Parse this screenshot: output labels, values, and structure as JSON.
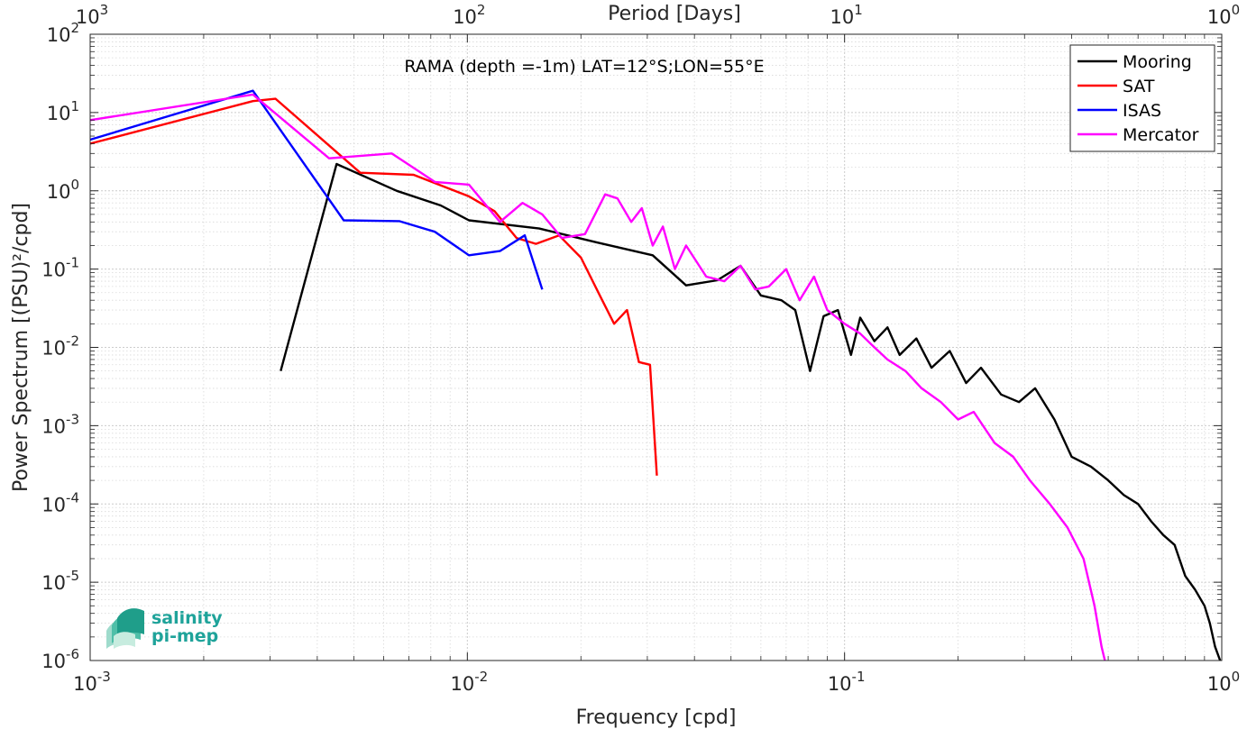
{
  "chart_data": {
    "type": "line",
    "log_x": true,
    "log_y": true,
    "xlim": [
      0.001,
      1
    ],
    "ylim": [
      1e-06,
      100
    ],
    "xlabel": "Frequency [cpd]",
    "ylabel": "Power Spectrum [(PSU)²/cpd]",
    "top_xlabel": "Period [Days]",
    "annotation": "RAMA (depth =-1m) LAT=12°S;LON=55°E",
    "grid": true,
    "legend_position": "top-right",
    "x_ticks": [
      {
        "value": 0.001,
        "base": "10",
        "exp": "-3"
      },
      {
        "value": 0.01,
        "base": "10",
        "exp": "-2"
      },
      {
        "value": 0.1,
        "base": "10",
        "exp": "-1"
      },
      {
        "value": 1,
        "base": "10",
        "exp": "0"
      }
    ],
    "top_ticks": [
      {
        "value": 0.001,
        "base": "10",
        "exp": "3"
      },
      {
        "value": 0.01,
        "base": "10",
        "exp": "2"
      },
      {
        "value": 0.1,
        "base": "10",
        "exp": "1"
      },
      {
        "value": 1,
        "base": "10",
        "exp": "0"
      }
    ],
    "y_ticks": [
      {
        "value": 100,
        "base": "10",
        "exp": "2"
      },
      {
        "value": 10,
        "base": "10",
        "exp": "1"
      },
      {
        "value": 1,
        "base": "10",
        "exp": "0"
      },
      {
        "value": 0.1,
        "base": "10",
        "exp": "-1"
      },
      {
        "value": 0.01,
        "base": "10",
        "exp": "-2"
      },
      {
        "value": 0.001,
        "base": "10",
        "exp": "-3"
      },
      {
        "value": 0.0001,
        "base": "10",
        "exp": "-4"
      },
      {
        "value": 1e-05,
        "base": "10",
        "exp": "-5"
      },
      {
        "value": 1e-06,
        "base": "10",
        "exp": "-6"
      }
    ],
    "series": [
      {
        "name": "Mooring",
        "color": "#000000",
        "x": [
          0.0032,
          0.0045,
          0.0065,
          0.0085,
          0.0101,
          0.0155,
          0.022,
          0.031,
          0.038,
          0.046,
          0.053,
          0.06,
          0.068,
          0.074,
          0.081,
          0.088,
          0.096,
          0.104,
          0.11,
          0.12,
          0.13,
          0.14,
          0.155,
          0.17,
          0.19,
          0.21,
          0.23,
          0.26,
          0.29,
          0.32,
          0.36,
          0.4,
          0.45,
          0.5,
          0.55,
          0.6,
          0.65,
          0.7,
          0.75,
          0.8,
          0.85,
          0.9,
          0.93,
          0.96,
          0.99
        ],
        "y": [
          0.005,
          2.2,
          1.0,
          0.65,
          0.42,
          0.33,
          0.22,
          0.15,
          0.062,
          0.072,
          0.11,
          0.046,
          0.04,
          0.03,
          0.005,
          0.025,
          0.03,
          0.008,
          0.024,
          0.012,
          0.018,
          0.008,
          0.013,
          0.0055,
          0.009,
          0.0035,
          0.0055,
          0.0025,
          0.002,
          0.003,
          0.0012,
          0.0004,
          0.0003,
          0.0002,
          0.00013,
          0.0001,
          6e-05,
          4e-05,
          3e-05,
          1.2e-05,
          8e-06,
          5e-06,
          3e-06,
          1.5e-06,
          1e-06
        ]
      },
      {
        "name": "SAT",
        "color": "#ff0000",
        "x": [
          0.001,
          0.0027,
          0.0031,
          0.0052,
          0.0072,
          0.0101,
          0.0118,
          0.0135,
          0.0152,
          0.0175,
          0.02,
          0.0225,
          0.0245,
          0.0265,
          0.0285,
          0.0305,
          0.0318
        ],
        "y": [
          4.0,
          14.0,
          15.0,
          1.7,
          1.6,
          0.85,
          0.55,
          0.25,
          0.21,
          0.27,
          0.14,
          0.045,
          0.02,
          0.03,
          0.0065,
          0.006,
          0.00023
        ]
      },
      {
        "name": "ISAS",
        "color": "#0000ff",
        "x": [
          0.001,
          0.0027,
          0.0047,
          0.0066,
          0.0082,
          0.0101,
          0.0122,
          0.0142,
          0.0158
        ],
        "y": [
          4.5,
          19.0,
          0.42,
          0.41,
          0.3,
          0.15,
          0.17,
          0.27,
          0.055
        ]
      },
      {
        "name": "Mercator",
        "color": "#ff00ff",
        "x": [
          0.001,
          0.0027,
          0.0043,
          0.0063,
          0.0082,
          0.0101,
          0.0122,
          0.014,
          0.0158,
          0.0178,
          0.0205,
          0.0232,
          0.025,
          0.0272,
          0.029,
          0.031,
          0.033,
          0.0355,
          0.038,
          0.043,
          0.048,
          0.053,
          0.058,
          0.063,
          0.07,
          0.076,
          0.083,
          0.09,
          0.1,
          0.11,
          0.12,
          0.13,
          0.145,
          0.16,
          0.18,
          0.2,
          0.22,
          0.25,
          0.28,
          0.31,
          0.35,
          0.39,
          0.43,
          0.46,
          0.48,
          0.49
        ],
        "y": [
          8.0,
          17.0,
          2.6,
          3.0,
          1.3,
          1.2,
          0.4,
          0.7,
          0.5,
          0.25,
          0.28,
          0.9,
          0.8,
          0.4,
          0.6,
          0.2,
          0.35,
          0.1,
          0.2,
          0.08,
          0.07,
          0.11,
          0.055,
          0.06,
          0.1,
          0.04,
          0.08,
          0.03,
          0.02,
          0.015,
          0.01,
          0.007,
          0.005,
          0.003,
          0.002,
          0.0012,
          0.0015,
          0.0006,
          0.0004,
          0.0002,
          0.0001,
          5e-05,
          2e-05,
          5e-06,
          1.5e-06,
          1e-06
        ]
      }
    ]
  },
  "logo": {
    "line1": "salinity",
    "line2": "pi-mep",
    "color": "#1fa39a"
  }
}
